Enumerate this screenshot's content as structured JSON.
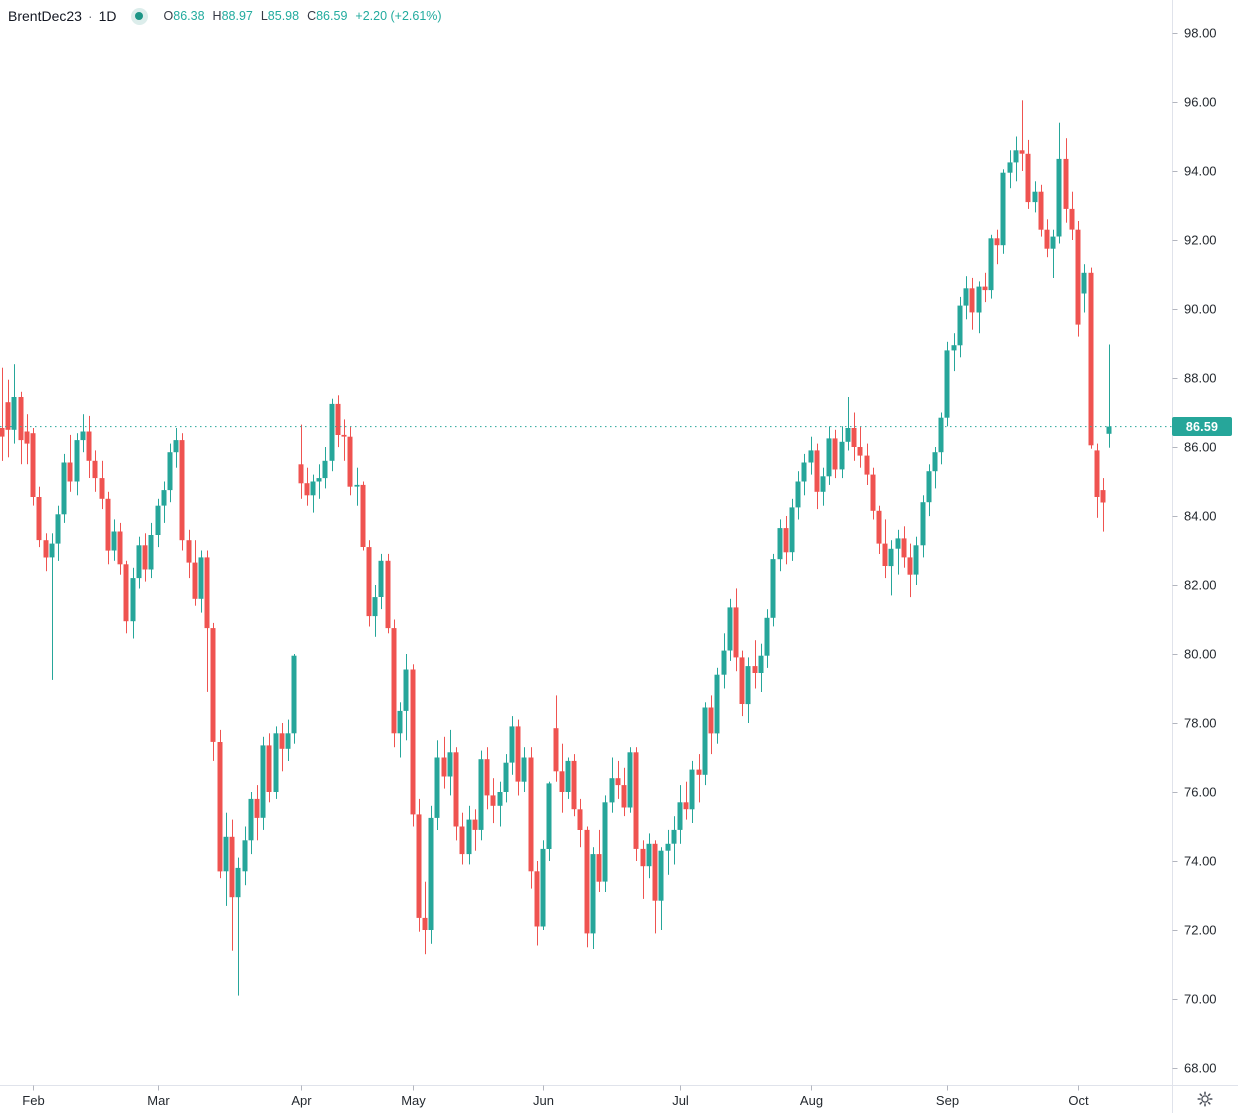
{
  "header": {
    "symbol": "BrentDec23",
    "separator": "·",
    "interval": "1D",
    "source_icon": "teal-dot-logo",
    "ohlc": {
      "open_label": "O",
      "open": "86.38",
      "high_label": "H",
      "high": "88.97",
      "low_label": "L",
      "low": "85.98",
      "close_label": "C",
      "close": "86.59",
      "change": "+2.20 (+2.61%)"
    }
  },
  "price_axis": {
    "last_price_label": "86.59",
    "tick_labels": [
      "98.00",
      "96.00",
      "94.00",
      "92.00",
      "90.00",
      "88.00",
      "86.00",
      "84.00",
      "82.00",
      "80.00",
      "78.00",
      "76.00",
      "74.00",
      "72.00",
      "70.00",
      "68.00"
    ],
    "tick_values": [
      98,
      96,
      94,
      92,
      90,
      88,
      86,
      84,
      82,
      80,
      78,
      76,
      74,
      72,
      70,
      68
    ]
  },
  "corner": {
    "settings_icon": "gear"
  },
  "colors": {
    "up": "#26a69a",
    "down": "#ef5350",
    "price_line": "#26a69a",
    "badge_bg": "#26a69a",
    "axis_line": "#e0e3eb",
    "tick_mark": "#b2b5be",
    "axis_text": "#24292f"
  },
  "chart_data": {
    "type": "candlestick",
    "title": "BrentDec23 1D",
    "interval": "daily",
    "ylim": [
      67.5,
      98.95
    ],
    "price_line": 86.59,
    "price_line_label": "86.59",
    "legend_position": "top-left",
    "grid": false,
    "x_months": [
      {
        "label": "Feb",
        "bar": 5
      },
      {
        "label": "Mar",
        "bar": 25
      },
      {
        "label": "Apr",
        "bar": 48
      },
      {
        "label": "May",
        "bar": 66
      },
      {
        "label": "Jun",
        "bar": 87
      },
      {
        "label": "Jul",
        "bar": 109
      },
      {
        "label": "Aug",
        "bar": 130
      },
      {
        "label": "Sep",
        "bar": 152
      },
      {
        "label": "Oct",
        "bar": 173
      }
    ],
    "candles": [
      [
        86.55,
        88.3,
        85.6,
        86.3
      ],
      [
        87.3,
        87.95,
        85.7,
        86.5
      ],
      [
        86.5,
        88.4,
        86.1,
        87.45
      ],
      [
        87.45,
        87.6,
        85.5,
        86.2
      ],
      [
        86.45,
        86.95,
        85.5,
        86.1
      ],
      [
        86.4,
        86.55,
        84.3,
        84.55
      ],
      [
        84.55,
        84.85,
        83.1,
        83.3
      ],
      [
        83.3,
        83.5,
        82.4,
        82.8
      ],
      [
        82.8,
        83.5,
        79.25,
        83.2
      ],
      [
        83.2,
        84.3,
        82.7,
        84.05
      ],
      [
        84.05,
        85.8,
        83.8,
        85.55
      ],
      [
        85.55,
        86.35,
        84.7,
        85.0
      ],
      [
        85.0,
        86.4,
        84.6,
        86.2
      ],
      [
        86.2,
        86.95,
        85.85,
        86.45
      ],
      [
        86.45,
        86.9,
        85.1,
        85.6
      ],
      [
        85.6,
        85.9,
        84.7,
        85.1
      ],
      [
        85.1,
        85.6,
        84.2,
        84.5
      ],
      [
        84.5,
        84.7,
        82.6,
        83.0
      ],
      [
        83.0,
        83.9,
        82.7,
        83.55
      ],
      [
        83.55,
        83.8,
        82.3,
        82.6
      ],
      [
        82.6,
        82.7,
        80.6,
        80.95
      ],
      [
        80.95,
        82.5,
        80.45,
        82.2
      ],
      [
        82.2,
        83.4,
        81.9,
        83.15
      ],
      [
        83.15,
        83.5,
        82.1,
        82.45
      ],
      [
        82.45,
        83.8,
        82.2,
        83.45
      ],
      [
        83.45,
        84.5,
        83.1,
        84.3
      ],
      [
        84.3,
        85.0,
        83.8,
        84.75
      ],
      [
        84.75,
        86.1,
        84.4,
        85.85
      ],
      [
        85.85,
        86.55,
        85.4,
        86.2
      ],
      [
        86.2,
        86.4,
        83.0,
        83.3
      ],
      [
        83.3,
        83.6,
        82.2,
        82.65
      ],
      [
        82.65,
        83.3,
        81.4,
        81.6
      ],
      [
        81.6,
        83.0,
        81.2,
        82.8
      ],
      [
        82.8,
        83.0,
        78.9,
        80.75
      ],
      [
        80.75,
        80.9,
        76.9,
        77.45
      ],
      [
        77.45,
        77.8,
        73.5,
        73.7
      ],
      [
        73.7,
        75.4,
        72.7,
        74.7
      ],
      [
        74.7,
        75.2,
        71.4,
        72.95
      ],
      [
        72.95,
        74.1,
        70.1,
        73.8
      ],
      [
        73.7,
        75.0,
        73.3,
        74.6
      ],
      [
        74.6,
        76.0,
        74.2,
        75.8
      ],
      [
        75.8,
        76.2,
        74.6,
        75.25
      ],
      [
        75.25,
        77.6,
        74.9,
        77.35
      ],
      [
        77.35,
        77.7,
        75.7,
        76.0
      ],
      [
        76.0,
        77.9,
        75.8,
        77.7
      ],
      [
        77.7,
        78.0,
        76.6,
        77.25
      ],
      [
        77.25,
        78.1,
        76.9,
        77.7
      ],
      [
        77.7,
        80.0,
        77.4,
        79.95
      ],
      [
        85.5,
        86.65,
        84.5,
        84.95
      ],
      [
        84.95,
        85.4,
        84.3,
        84.6
      ],
      [
        84.6,
        85.2,
        84.1,
        85.0
      ],
      [
        85.0,
        85.5,
        84.5,
        85.1
      ],
      [
        85.1,
        86.0,
        84.8,
        85.6
      ],
      [
        85.6,
        87.4,
        85.3,
        87.25
      ],
      [
        87.25,
        87.5,
        86.0,
        86.35
      ],
      [
        86.35,
        86.8,
        85.6,
        86.3
      ],
      [
        86.3,
        86.6,
        84.6,
        84.85
      ],
      [
        84.85,
        85.4,
        84.3,
        84.9
      ],
      [
        84.9,
        85.0,
        83.0,
        83.1
      ],
      [
        83.1,
        83.3,
        80.8,
        81.1
      ],
      [
        81.1,
        82.0,
        80.5,
        81.65
      ],
      [
        81.65,
        82.9,
        81.3,
        82.7
      ],
      [
        82.7,
        82.9,
        80.6,
        80.75
      ],
      [
        80.75,
        81.0,
        77.3,
        77.7
      ],
      [
        77.7,
        78.6,
        77.0,
        78.35
      ],
      [
        78.35,
        80.0,
        77.5,
        79.55
      ],
      [
        79.55,
        79.7,
        75.0,
        75.35
      ],
      [
        75.35,
        75.8,
        71.95,
        72.35
      ],
      [
        72.35,
        73.4,
        71.3,
        72.0
      ],
      [
        72.0,
        75.6,
        71.6,
        75.25
      ],
      [
        75.25,
        77.5,
        74.9,
        77.0
      ],
      [
        77.0,
        77.6,
        76.1,
        76.45
      ],
      [
        76.45,
        77.8,
        75.9,
        77.15
      ],
      [
        77.15,
        77.3,
        74.6,
        75.0
      ],
      [
        75.0,
        75.4,
        73.9,
        74.2
      ],
      [
        74.2,
        75.6,
        73.9,
        75.2
      ],
      [
        75.2,
        75.5,
        74.3,
        74.9
      ],
      [
        74.9,
        77.2,
        74.6,
        76.95
      ],
      [
        76.95,
        77.3,
        75.5,
        75.9
      ],
      [
        75.9,
        76.4,
        75.1,
        75.6
      ],
      [
        75.6,
        76.3,
        75.0,
        76.0
      ],
      [
        76.0,
        77.1,
        75.7,
        76.85
      ],
      [
        76.85,
        78.2,
        76.5,
        77.9
      ],
      [
        77.9,
        78.1,
        75.9,
        76.3
      ],
      [
        76.3,
        77.3,
        76.0,
        77.0
      ],
      [
        77.0,
        77.3,
        73.2,
        73.7
      ],
      [
        73.7,
        74.0,
        71.55,
        72.1
      ],
      [
        72.1,
        74.6,
        72.0,
        74.35
      ],
      [
        74.35,
        76.3,
        74.0,
        76.25
      ],
      [
        77.85,
        78.8,
        76.3,
        76.6
      ],
      [
        76.6,
        77.4,
        75.4,
        76.0
      ],
      [
        76.0,
        77.0,
        75.8,
        76.9
      ],
      [
        76.9,
        77.1,
        75.3,
        75.5
      ],
      [
        75.5,
        75.8,
        74.4,
        74.9
      ],
      [
        74.9,
        75.0,
        71.5,
        71.9
      ],
      [
        71.9,
        74.4,
        71.45,
        74.2
      ],
      [
        74.2,
        74.9,
        73.1,
        73.4
      ],
      [
        73.4,
        75.9,
        73.1,
        75.7
      ],
      [
        75.7,
        77.0,
        75.4,
        76.4
      ],
      [
        76.4,
        76.9,
        75.8,
        76.2
      ],
      [
        76.2,
        76.7,
        75.3,
        75.55
      ],
      [
        75.55,
        77.3,
        75.4,
        77.15
      ],
      [
        77.15,
        77.3,
        74.0,
        74.35
      ],
      [
        74.35,
        74.6,
        72.9,
        73.85
      ],
      [
        73.85,
        74.8,
        73.5,
        74.5
      ],
      [
        74.5,
        74.6,
        71.9,
        72.85
      ],
      [
        72.85,
        74.4,
        72.0,
        74.3
      ],
      [
        74.3,
        74.9,
        73.6,
        74.5
      ],
      [
        74.5,
        75.3,
        73.9,
        74.9
      ],
      [
        74.9,
        76.2,
        74.5,
        75.7
      ],
      [
        75.7,
        76.3,
        75.2,
        75.5
      ],
      [
        75.5,
        76.9,
        75.1,
        76.65
      ],
      [
        76.65,
        77.1,
        75.7,
        76.5
      ],
      [
        76.5,
        78.6,
        76.2,
        78.45
      ],
      [
        78.45,
        78.8,
        77.1,
        77.7
      ],
      [
        77.7,
        79.6,
        77.4,
        79.4
      ],
      [
        79.4,
        80.6,
        79.0,
        80.1
      ],
      [
        80.1,
        81.6,
        79.8,
        81.35
      ],
      [
        81.35,
        81.9,
        79.5,
        79.9
      ],
      [
        79.9,
        80.1,
        78.2,
        78.55
      ],
      [
        78.55,
        79.9,
        78.0,
        79.65
      ],
      [
        79.65,
        80.4,
        79.0,
        79.45
      ],
      [
        79.45,
        80.3,
        78.9,
        79.95
      ],
      [
        79.95,
        81.3,
        79.6,
        81.05
      ],
      [
        81.05,
        82.9,
        80.8,
        82.75
      ],
      [
        82.75,
        83.9,
        82.4,
        83.65
      ],
      [
        83.65,
        84.0,
        82.6,
        82.95
      ],
      [
        82.95,
        84.5,
        82.7,
        84.25
      ],
      [
        84.25,
        85.3,
        83.9,
        85.0
      ],
      [
        85.0,
        85.8,
        84.6,
        85.55
      ],
      [
        85.55,
        86.3,
        85.2,
        85.9
      ],
      [
        85.9,
        86.1,
        84.2,
        84.7
      ],
      [
        84.7,
        85.4,
        84.3,
        85.15
      ],
      [
        85.15,
        86.6,
        84.9,
        86.25
      ],
      [
        86.25,
        86.5,
        85.1,
        85.35
      ],
      [
        85.35,
        86.6,
        85.1,
        86.15
      ],
      [
        86.15,
        87.45,
        85.9,
        86.55
      ],
      [
        86.55,
        87.0,
        85.6,
        86.0
      ],
      [
        86.0,
        86.6,
        85.4,
        85.75
      ],
      [
        85.75,
        86.1,
        84.9,
        85.2
      ],
      [
        85.2,
        85.4,
        83.9,
        84.15
      ],
      [
        84.15,
        84.3,
        82.9,
        83.2
      ],
      [
        83.2,
        83.9,
        82.2,
        82.55
      ],
      [
        82.55,
        83.3,
        81.7,
        83.05
      ],
      [
        83.05,
        83.6,
        82.3,
        83.35
      ],
      [
        83.35,
        83.7,
        82.5,
        82.8
      ],
      [
        82.8,
        83.2,
        81.65,
        82.3
      ],
      [
        82.3,
        83.4,
        82.0,
        83.15
      ],
      [
        83.15,
        84.6,
        82.8,
        84.4
      ],
      [
        84.4,
        85.5,
        84.0,
        85.3
      ],
      [
        85.3,
        86.0,
        84.8,
        85.85
      ],
      [
        85.85,
        87.0,
        85.5,
        86.85
      ],
      [
        86.85,
        89.05,
        86.6,
        88.8
      ],
      [
        88.8,
        89.3,
        88.2,
        88.95
      ],
      [
        88.95,
        90.35,
        88.6,
        90.1
      ],
      [
        90.1,
        90.95,
        89.7,
        90.6
      ],
      [
        90.6,
        90.9,
        89.4,
        89.9
      ],
      [
        89.9,
        90.8,
        89.3,
        90.65
      ],
      [
        90.65,
        91.05,
        90.2,
        90.55
      ],
      [
        90.55,
        92.15,
        90.3,
        92.05
      ],
      [
        92.05,
        92.3,
        91.3,
        91.85
      ],
      [
        91.85,
        94.05,
        91.6,
        93.95
      ],
      [
        93.95,
        94.6,
        93.5,
        94.25
      ],
      [
        94.25,
        95.0,
        93.7,
        94.6
      ],
      [
        94.6,
        96.05,
        94.0,
        94.5
      ],
      [
        94.5,
        94.9,
        92.9,
        93.1
      ],
      [
        93.1,
        93.7,
        92.8,
        93.4
      ],
      [
        93.4,
        93.6,
        92.1,
        92.3
      ],
      [
        92.3,
        92.6,
        91.5,
        91.75
      ],
      [
        91.75,
        92.3,
        90.9,
        92.1
      ],
      [
        92.1,
        95.4,
        91.9,
        94.35
      ],
      [
        94.35,
        94.95,
        92.5,
        92.9
      ],
      [
        92.9,
        93.4,
        92.0,
        92.3
      ],
      [
        92.3,
        92.55,
        89.2,
        89.55
      ],
      [
        90.45,
        91.3,
        89.9,
        91.05
      ],
      [
        91.05,
        91.2,
        85.95,
        86.05
      ],
      [
        85.9,
        86.1,
        83.95,
        84.55
      ],
      [
        84.75,
        85.1,
        83.55,
        84.39
      ],
      [
        86.38,
        88.97,
        85.98,
        86.59
      ]
    ]
  }
}
